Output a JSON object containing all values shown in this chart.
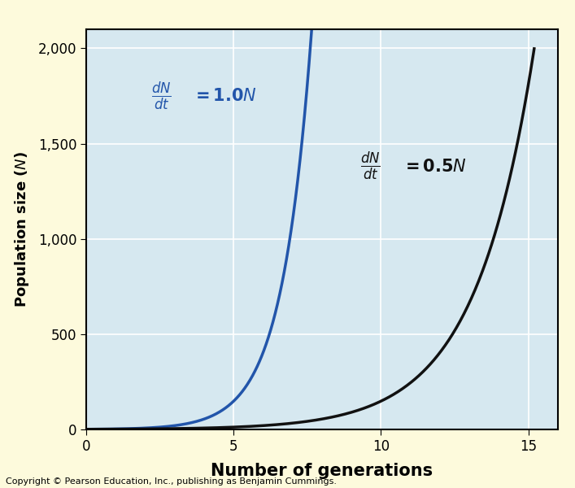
{
  "xlim": [
    0,
    16
  ],
  "ylim": [
    0,
    2100
  ],
  "xticks": [
    0,
    5,
    10,
    15
  ],
  "yticks": [
    0,
    500,
    1000,
    1500,
    2000
  ],
  "xlabel": "Number of generations",
  "plot_bg_color": "#d6e8f0",
  "outer_bg_color": "#fdfadc",
  "grid_color": "#ffffff",
  "line1_color": "#2255aa",
  "line2_color": "#111111",
  "line1_r": 1.0,
  "line2_r": 0.5,
  "N0": 1,
  "line_width": 2.5,
  "xlabel_fontsize": 15,
  "ylabel_fontsize": 13,
  "tick_fontsize": 12,
  "copyright_text": "Copyright © Pearson Education, Inc., publishing as Benjamin Cummings.",
  "copyright_fontsize": 8
}
